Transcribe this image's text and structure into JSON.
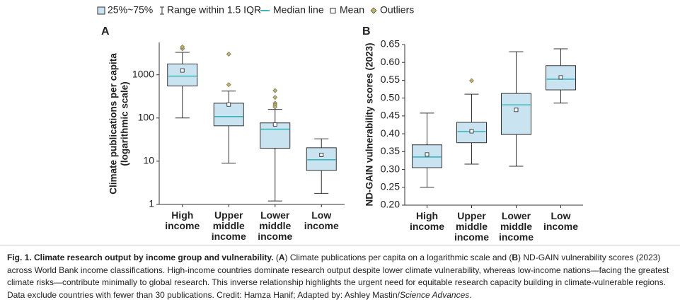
{
  "legend": [
    {
      "label": "25%~75%"
    },
    {
      "label": "Range within 1.5 IQR"
    },
    {
      "label": "Median line"
    },
    {
      "label": "Mean"
    },
    {
      "label": "Outliers"
    }
  ],
  "chart_data": [
    {
      "type": "box",
      "panel": "A",
      "ylabel": [
        "Climate publications per capita",
        "(logarithmic scale)"
      ],
      "log_scale": true,
      "categories": [
        "High income",
        "Upper middle income",
        "Lower middle income",
        "Low income"
      ],
      "ylim": [
        1,
        5600
      ],
      "yticks": [
        1,
        10,
        100,
        1000
      ],
      "box_color": "#c9e3f1",
      "median_color": "#3ab5b8",
      "outlier_color": "#c2b55a",
      "boxes": [
        {
          "low": 100,
          "q1": 550,
          "median": 930,
          "q3": 1780,
          "high": 3300,
          "mean": 1260,
          "outliers": [
            4000,
            4400
          ]
        },
        {
          "low": 9,
          "q1": 66,
          "median": 108,
          "q3": 220,
          "high": 420,
          "mean": 205,
          "outliers": [
            3000,
            590
          ]
        },
        {
          "low": 1.2,
          "q1": 20,
          "median": 55,
          "q3": 77,
          "high": 158,
          "mean": 71,
          "outliers": [
            430,
            300,
            220,
            200,
            180
          ]
        },
        {
          "low": 1.8,
          "q1": 6.1,
          "median": 10.8,
          "q3": 20.5,
          "high": 33,
          "mean": 14,
          "outliers": []
        }
      ]
    },
    {
      "type": "box",
      "panel": "B",
      "ylabel": [
        "ND-GAIN vulnerability scores (2023)"
      ],
      "log_scale": false,
      "categories": [
        "High income",
        "Upper middle income",
        "Lower middle income",
        "Low income"
      ],
      "ylim": [
        0.2,
        0.65
      ],
      "yticks": [
        {
          "value": 0.2,
          "label": "0.20"
        },
        {
          "value": 0.25,
          "label": "0.25"
        },
        {
          "value": 0.3,
          "label": "0.30"
        },
        {
          "value": 0.35,
          "label": "0.35"
        },
        {
          "value": 0.4,
          "label": "0.40"
        },
        {
          "value": 0.45,
          "label": "0.45"
        },
        {
          "value": 0.5,
          "label": "0.50"
        },
        {
          "value": 0.55,
          "label": "0.55"
        },
        {
          "value": 0.6,
          "label": "0.60"
        },
        {
          "value": 0.65,
          "label": "0.65"
        }
      ],
      "box_color": "#c9e3f1",
      "median_color": "#3ab5b8",
      "outlier_color": "#c2b55a",
      "boxes": [
        {
          "low": 0.25,
          "q1": 0.305,
          "median": 0.335,
          "q3": 0.369,
          "high": 0.458,
          "mean": 0.342,
          "outliers": []
        },
        {
          "low": 0.315,
          "q1": 0.375,
          "median": 0.406,
          "q3": 0.432,
          "high": 0.511,
          "mean": 0.407,
          "outliers": [
            0.549
          ]
        },
        {
          "low": 0.309,
          "q1": 0.398,
          "median": 0.481,
          "q3": 0.513,
          "high": 0.63,
          "mean": 0.467,
          "outliers": []
        },
        {
          "low": 0.486,
          "q1": 0.523,
          "median": 0.553,
          "q3": 0.591,
          "high": 0.638,
          "mean": 0.558,
          "outliers": []
        }
      ]
    }
  ],
  "caption": [
    {
      "text": "Fig. 1. Climate research output by income group and vulnerability.",
      "bold": true
    },
    {
      "text": " ("
    },
    {
      "text": "A",
      "bold": true
    },
    {
      "text": ") Climate publications per capita on a logarithmic scale and ("
    },
    {
      "text": "B",
      "bold": true
    },
    {
      "text": ") ND-GAIN vulnerability scores (2023) across World Bank income classifications. High-income countries dominate research output despite lower climate vulnerability, whereas low-income nations—facing the greatest climate risks—contribute minimally to global research. This inverse relationship highlights the urgent need for equitable research capacity building in climate-vulnerable regions. Data exclude countries with fewer than 30 publications. Credit: Hamza Hanif; Adapted by: Ashley Mastin/"
    },
    {
      "text": "Science Advances",
      "italic": true
    },
    {
      "text": "."
    }
  ]
}
